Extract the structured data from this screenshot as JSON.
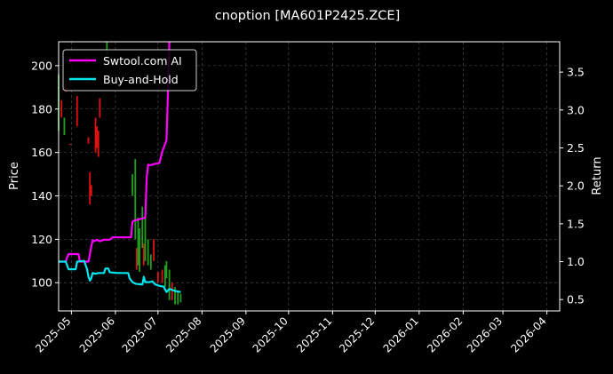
{
  "chart_data": {
    "type": "line",
    "title": "cnoption [MA601P2425.ZCE]",
    "ylabel_left": "Price",
    "ylabel_right": "Return",
    "x_range": [
      "2025-04-22",
      "2026-04-10"
    ],
    "y_left_range": [
      87,
      211
    ],
    "y_right_range": [
      0.35,
      3.9
    ],
    "x_ticks": [
      "2025-05",
      "2025-06",
      "2025-07",
      "2025-08",
      "2025-09",
      "2025-10",
      "2025-11",
      "2025-12",
      "2026-01",
      "2026-02",
      "2026-03",
      "2026-04"
    ],
    "y_left_ticks": [
      100,
      120,
      140,
      160,
      180,
      200
    ],
    "y_right_ticks": [
      0.5,
      1.0,
      1.5,
      2.0,
      2.5,
      3.0,
      3.5
    ],
    "grid": true,
    "legend_position": "top-left",
    "colors": {
      "background": "#000000",
      "ai": "#ff00ff",
      "bh": "#00e5ee",
      "up": "#1fa01f",
      "down": "#e01010",
      "grid": "#555555"
    },
    "series": [
      {
        "name": "Swtool.com AI",
        "axis": "right",
        "points": [
          [
            "2025-04-22",
            1.0
          ],
          [
            "2025-04-27",
            1.0
          ],
          [
            "2025-04-28",
            1.06
          ],
          [
            "2025-04-29",
            1.1
          ],
          [
            "2025-05-06",
            1.1
          ],
          [
            "2025-05-07",
            1.0
          ],
          [
            "2025-05-13",
            1.0
          ],
          [
            "2025-05-14",
            1.1
          ],
          [
            "2025-05-15",
            1.2
          ],
          [
            "2025-05-16",
            1.28
          ],
          [
            "2025-05-17",
            1.27
          ],
          [
            "2025-05-19",
            1.29
          ],
          [
            "2025-05-21",
            1.27
          ],
          [
            "2025-05-24",
            1.29
          ],
          [
            "2025-05-28",
            1.29
          ],
          [
            "2025-05-30",
            1.32
          ],
          [
            "2025-06-12",
            1.32
          ],
          [
            "2025-06-13",
            1.52
          ],
          [
            "2025-06-14",
            1.54
          ],
          [
            "2025-06-18",
            1.56
          ],
          [
            "2025-06-20",
            1.57
          ],
          [
            "2025-06-22",
            1.58
          ],
          [
            "2025-06-23",
            2.1
          ],
          [
            "2025-06-24",
            2.28
          ],
          [
            "2025-06-25",
            2.27
          ],
          [
            "2025-06-29",
            2.29
          ],
          [
            "2025-07-02",
            2.3
          ],
          [
            "2025-07-04",
            2.45
          ],
          [
            "2025-07-05",
            2.5
          ],
          [
            "2025-07-07",
            2.6
          ],
          [
            "2025-07-08",
            3.2
          ],
          [
            "2025-07-09",
            3.9
          ]
        ]
      },
      {
        "name": "Buy-and-Hold",
        "axis": "right",
        "points": [
          [
            "2025-04-22",
            1.0
          ],
          [
            "2025-04-27",
            1.0
          ],
          [
            "2025-04-28",
            0.95
          ],
          [
            "2025-04-29",
            0.9
          ],
          [
            "2025-05-04",
            0.9
          ],
          [
            "2025-05-05",
            1.0
          ],
          [
            "2025-05-10",
            1.01
          ],
          [
            "2025-05-12",
            0.9
          ],
          [
            "2025-05-13",
            0.8
          ],
          [
            "2025-05-14",
            0.75
          ],
          [
            "2025-05-15",
            0.78
          ],
          [
            "2025-05-16",
            0.85
          ],
          [
            "2025-05-18",
            0.84
          ],
          [
            "2025-05-20",
            0.85
          ],
          [
            "2025-05-24",
            0.85
          ],
          [
            "2025-05-25",
            0.91
          ],
          [
            "2025-05-27",
            0.91
          ],
          [
            "2025-05-28",
            0.86
          ],
          [
            "2025-06-02",
            0.85
          ],
          [
            "2025-06-10",
            0.85
          ],
          [
            "2025-06-11",
            0.78
          ],
          [
            "2025-06-13",
            0.73
          ],
          [
            "2025-06-15",
            0.71
          ],
          [
            "2025-06-18",
            0.7
          ],
          [
            "2025-06-20",
            0.7
          ],
          [
            "2025-06-21",
            0.8
          ],
          [
            "2025-06-22",
            0.73
          ],
          [
            "2025-06-25",
            0.73
          ],
          [
            "2025-06-27",
            0.74
          ],
          [
            "2025-06-29",
            0.7
          ],
          [
            "2025-07-02",
            0.68
          ],
          [
            "2025-07-05",
            0.67
          ],
          [
            "2025-07-07",
            0.6
          ],
          [
            "2025-07-09",
            0.64
          ],
          [
            "2025-07-12",
            0.62
          ],
          [
            "2025-07-14",
            0.61
          ],
          [
            "2025-07-17",
            0.6
          ]
        ]
      }
    ],
    "candles": {
      "axis": "left",
      "items": [
        [
          "2025-04-22",
          196,
          170,
          "up"
        ],
        [
          "2025-04-24",
          184,
          176,
          "down"
        ],
        [
          "2025-04-26",
          176,
          168,
          "up"
        ],
        [
          "2025-04-27",
          192,
          188,
          "down"
        ],
        [
          "2025-04-30",
          164,
          164,
          "down"
        ],
        [
          "2025-05-05",
          186,
          172,
          "down"
        ],
        [
          "2025-05-13",
          167,
          164,
          "down"
        ],
        [
          "2025-05-14",
          151,
          136,
          "down"
        ],
        [
          "2025-05-15",
          145,
          140,
          "down"
        ],
        [
          "2025-05-18",
          176,
          160,
          "down"
        ],
        [
          "2025-05-19",
          172,
          162,
          "down"
        ],
        [
          "2025-05-20",
          170,
          158,
          "down"
        ],
        [
          "2025-05-21",
          185,
          176,
          "down"
        ],
        [
          "2025-05-26",
          211,
          205,
          "up"
        ],
        [
          "2025-06-13",
          150,
          140,
          "up"
        ],
        [
          "2025-06-15",
          157,
          120,
          "up"
        ],
        [
          "2025-06-16",
          116,
          106,
          "down"
        ],
        [
          "2025-06-17",
          130,
          108,
          "up"
        ],
        [
          "2025-06-18",
          125,
          105,
          "up"
        ],
        [
          "2025-06-20",
          135,
          116,
          "up"
        ],
        [
          "2025-06-21",
          118,
          108,
          "down"
        ],
        [
          "2025-06-22",
          132,
          110,
          "up"
        ],
        [
          "2025-06-24",
          120,
          108,
          "up"
        ],
        [
          "2025-06-26",
          113,
          106,
          "up"
        ],
        [
          "2025-06-28",
          120,
          110,
          "down"
        ],
        [
          "2025-07-01",
          105,
          100,
          "down"
        ],
        [
          "2025-07-04",
          106,
          100,
          "down"
        ],
        [
          "2025-07-06",
          108,
          98,
          "up"
        ],
        [
          "2025-07-07",
          110,
          102,
          "up"
        ],
        [
          "2025-07-09",
          106,
          92,
          "up"
        ],
        [
          "2025-07-11",
          100,
          92,
          "down"
        ],
        [
          "2025-07-13",
          98,
          90,
          "up"
        ],
        [
          "2025-07-15",
          96,
          90,
          "up"
        ],
        [
          "2025-07-17",
          95,
          91,
          "up"
        ]
      ]
    }
  }
}
